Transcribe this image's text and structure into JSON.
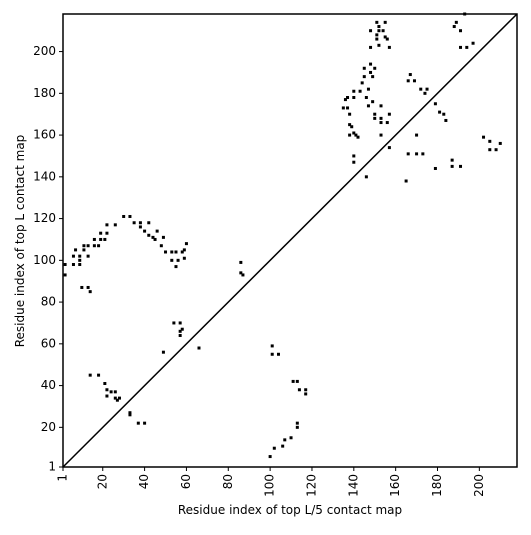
{
  "chart_data": {
    "type": "scatter",
    "x_label": "Residue index of top L/5 contact map",
    "y_label": "Residue index of top L contact map",
    "xlim": [
      1,
      218
    ],
    "ylim": [
      1,
      218
    ],
    "xticks": [
      1,
      20,
      40,
      60,
      80,
      100,
      120,
      140,
      160,
      180,
      200
    ],
    "yticks": [
      1,
      20,
      40,
      60,
      80,
      100,
      120,
      140,
      160,
      180,
      200
    ],
    "color": "#000000",
    "x": [
      2,
      2,
      6,
      6,
      7,
      9,
      9,
      9,
      10,
      11,
      11,
      13,
      13,
      13,
      14,
      16,
      16,
      18,
      19,
      19,
      21,
      22,
      22,
      26,
      30,
      33,
      35,
      38,
      38,
      40,
      42,
      42,
      44,
      45,
      46,
      48,
      49,
      50,
      53,
      53,
      55,
      55,
      56,
      58,
      59,
      59,
      60,
      54,
      57,
      57,
      57,
      58,
      49,
      66,
      86,
      86,
      87,
      135,
      136,
      137,
      137,
      138,
      138,
      138,
      139,
      140,
      140,
      140,
      140,
      140,
      141,
      142,
      143,
      144,
      145,
      145,
      146,
      146,
      147,
      147,
      148,
      148,
      148,
      148,
      149,
      149,
      150,
      150,
      150,
      151,
      151,
      151,
      152,
      152,
      152,
      153,
      153,
      153,
      153,
      154,
      155,
      155,
      156,
      156,
      157,
      157,
      157,
      165,
      166,
      166,
      167,
      169,
      170,
      170,
      172,
      173,
      174,
      175,
      179,
      179,
      181,
      183,
      184,
      187,
      187,
      188,
      189,
      191,
      191,
      191,
      193,
      194,
      197,
      202,
      205,
      205,
      208,
      210,
      33,
      33,
      37,
      40,
      14,
      18,
      21,
      22,
      22,
      24,
      26,
      26,
      27,
      28,
      100,
      101,
      101,
      104,
      102,
      106,
      107,
      110,
      111,
      113,
      113,
      113,
      114,
      117,
      117
    ],
    "values": [
      93,
      98,
      98,
      102,
      105,
      98,
      100,
      102,
      87,
      105,
      107,
      102,
      107,
      87,
      85,
      107,
      110,
      107,
      110,
      113,
      110,
      113,
      117,
      117,
      121,
      121,
      118,
      118,
      116,
      114,
      118,
      112,
      111,
      110,
      114,
      107,
      111,
      104,
      104,
      100,
      97,
      104,
      100,
      104,
      105,
      101,
      108,
      70,
      70,
      66,
      64,
      67,
      56,
      58,
      94,
      99,
      93,
      173,
      177,
      178,
      173,
      170,
      165,
      160,
      164,
      181,
      178,
      161,
      150,
      147,
      160,
      159,
      181,
      185,
      188,
      192,
      178,
      140,
      182,
      174,
      190,
      194,
      202,
      210,
      176,
      188,
      192,
      170,
      168,
      206,
      214,
      208,
      203,
      210,
      212,
      174,
      166,
      168,
      160,
      210,
      214,
      207,
      206,
      166,
      202,
      170,
      154,
      138,
      186,
      151,
      189,
      186,
      151,
      160,
      182,
      151,
      180,
      182,
      175,
      144,
      171,
      170,
      167,
      145,
      148,
      212,
      214,
      145,
      210,
      202,
      218,
      202,
      204,
      159,
      153,
      157,
      153,
      156,
      26,
      27,
      22,
      22,
      45,
      45,
      41,
      38,
      35,
      37,
      37,
      34,
      33,
      34,
      6,
      59,
      55,
      55,
      10,
      11,
      14,
      15,
      42,
      42,
      22,
      20,
      38,
      38,
      36
    ]
  }
}
